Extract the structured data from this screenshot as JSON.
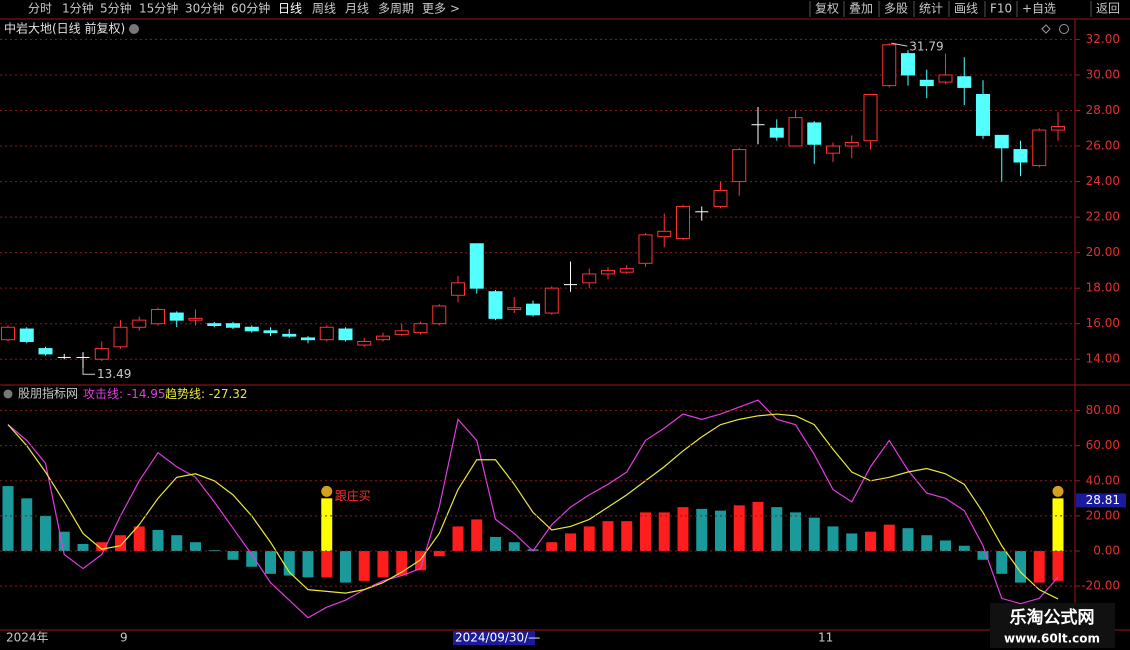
{
  "toolbar": {
    "left": [
      "分时",
      "1分钟",
      "5分钟",
      "15分钟",
      "30分钟",
      "60分钟",
      "日线",
      "周线",
      "月线",
      "多周期",
      "更多 >"
    ],
    "right": [
      "复权",
      "叠加",
      "多股",
      "统计",
      "画线",
      "F10",
      "+自选",
      "返回"
    ]
  },
  "main_chart": {
    "title": "中岩大地(日线 前复权)",
    "yticks": [
      {
        "value": 14,
        "label": "14.00"
      },
      {
        "value": 16,
        "label": "16.00"
      },
      {
        "value": 18,
        "label": "18.00"
      },
      {
        "value": 20,
        "label": "20.00"
      },
      {
        "value": 22,
        "label": "22.00"
      },
      {
        "value": 24,
        "label": "24.00"
      },
      {
        "value": 26,
        "label": "26.00"
      },
      {
        "value": 28,
        "label": "28.00"
      },
      {
        "value": 30,
        "label": "30.00"
      },
      {
        "value": 32,
        "label": "32.00"
      }
    ],
    "ylim": [
      12.55,
      33.15
    ],
    "up_color": "#ff3232",
    "down_color": "#54ffff",
    "flat_color": "#ffffff",
    "open": [
      15.1,
      15.7,
      14.6,
      14.1,
      14.1,
      14.0,
      14.7,
      15.8,
      16.0,
      16.6,
      16.2,
      16.0,
      16.0,
      15.8,
      15.6,
      15.4,
      15.2,
      15.1,
      15.7,
      14.8,
      15.1,
      15.4,
      15.5,
      16.0,
      17.6,
      20.5,
      17.8,
      16.8,
      17.1,
      16.6,
      18.2,
      18.3,
      18.8,
      18.9,
      19.4,
      20.9,
      20.8,
      22.3,
      22.6,
      24.0,
      27.2,
      27.0,
      26.0,
      27.3,
      25.6,
      26.0,
      26.3,
      29.4,
      31.2,
      29.7,
      29.6,
      29.9,
      28.9,
      26.6,
      25.8,
      24.9,
      26.9
    ],
    "high": [
      15.9,
      15.8,
      14.7,
      14.3,
      14.4,
      15.0,
      16.2,
      16.4,
      16.9,
      16.7,
      16.8,
      16.1,
      16.1,
      15.9,
      15.8,
      15.7,
      15.3,
      15.9,
      15.8,
      15.2,
      15.5,
      16.0,
      16.1,
      17.1,
      18.7,
      20.5,
      17.9,
      17.5,
      17.3,
      18.1,
      19.5,
      19.1,
      19.2,
      19.3,
      21.1,
      22.2,
      22.7,
      22.6,
      24.0,
      25.9,
      28.2,
      27.5,
      28.0,
      27.4,
      26.2,
      26.6,
      28.9,
      31.79,
      31.4,
      30.3,
      31.2,
      31.0,
      29.7,
      26.6,
      26.3,
      27.0,
      27.9
    ],
    "low": [
      15.0,
      14.9,
      14.2,
      14.0,
      13.49,
      13.9,
      14.6,
      15.6,
      15.9,
      15.8,
      15.9,
      15.8,
      15.7,
      15.5,
      15.3,
      15.2,
      14.9,
      15.0,
      15.0,
      14.7,
      15.0,
      15.3,
      15.4,
      15.9,
      17.2,
      17.7,
      16.2,
      16.6,
      16.4,
      16.5,
      17.8,
      18.0,
      18.5,
      18.8,
      19.2,
      20.3,
      20.7,
      21.8,
      22.5,
      23.2,
      26.1,
      26.3,
      26.0,
      25.0,
      25.1,
      25.3,
      25.8,
      29.3,
      29.4,
      28.7,
      29.5,
      28.3,
      26.4,
      24.0,
      24.3,
      24.8,
      26.3
    ],
    "close": [
      15.8,
      15.0,
      14.3,
      14.1,
      14.1,
      14.6,
      15.8,
      16.2,
      16.8,
      16.2,
      16.3,
      15.9,
      15.8,
      15.6,
      15.5,
      15.3,
      15.1,
      15.8,
      15.1,
      15.0,
      15.3,
      15.6,
      16.0,
      17.0,
      18.3,
      18.0,
      16.3,
      16.9,
      16.5,
      18.0,
      18.2,
      18.8,
      19.0,
      19.1,
      21.0,
      21.2,
      22.6,
      22.3,
      23.5,
      25.8,
      27.2,
      26.5,
      27.6,
      26.1,
      26.0,
      26.2,
      28.9,
      31.7,
      30.0,
      29.4,
      30.0,
      29.3,
      26.6,
      25.9,
      25.1,
      26.9,
      27.1
    ]
  },
  "indicator": {
    "name": "股朋指标网",
    "attack_label": "攻击线:",
    "trend_label": "趋势线:",
    "attack_color": "#e03ce0",
    "trend_color": "#e8e83c",
    "bar_up_color": "#ff1e1e",
    "bar_down_color": "#1a9a9a",
    "signal_color": "#ffff00",
    "signal_text": "跟庄买",
    "cursor_value": 28.81,
    "yticks": [
      {
        "value": -20,
        "label": "-20.00"
      },
      {
        "value": 0,
        "label": "0.00"
      },
      {
        "value": 20,
        "label": "20.00"
      },
      {
        "value": 40,
        "label": "40.00"
      },
      {
        "value": 60,
        "label": "60.00"
      },
      {
        "value": 80,
        "label": "80.00"
      }
    ],
    "ylim": [
      -45,
      94
    ],
    "bars": [
      37,
      30,
      20,
      11,
      4,
      5,
      9,
      14,
      12,
      9,
      5,
      0.5,
      -5,
      -9,
      -13,
      -14,
      -15,
      -15,
      -18,
      -17,
      -15,
      -14,
      -11,
      -3,
      14,
      18,
      8,
      5,
      1,
      5,
      10,
      14,
      17,
      17,
      22,
      22,
      25,
      24,
      23,
      26,
      28,
      25,
      22,
      19,
      14,
      10,
      11,
      15,
      13,
      9,
      6,
      3,
      -5,
      -13,
      -18,
      -18,
      -17
    ],
    "signals": [
      null,
      null,
      null,
      null,
      null,
      null,
      null,
      null,
      null,
      null,
      null,
      null,
      null,
      null,
      null,
      null,
      null,
      30,
      null,
      null,
      null,
      null,
      null,
      null,
      null,
      null,
      null,
      null,
      null,
      null,
      null,
      null,
      null,
      null,
      null,
      null,
      null,
      null,
      null,
      null,
      null,
      null,
      null,
      null,
      null,
      null,
      null,
      null,
      null,
      null,
      null,
      null,
      null,
      null,
      null,
      null,
      30
    ],
    "attack": [
      72,
      63,
      50,
      -2,
      -10,
      -2,
      20,
      40,
      56,
      48,
      42,
      28,
      13,
      -2,
      -18,
      -28,
      -38,
      -32,
      -28,
      -22,
      -17,
      -14,
      -10,
      25,
      75,
      63,
      18,
      10,
      0,
      15,
      25,
      32,
      38,
      45,
      63,
      70,
      78,
      75,
      78,
      82,
      86,
      75,
      72,
      55,
      35,
      28,
      48,
      63,
      46,
      33,
      30,
      23,
      3,
      -27,
      -30,
      -27,
      -14.95
    ],
    "trend": [
      72,
      60,
      45,
      28,
      10,
      1,
      3,
      15,
      30,
      42,
      44,
      40,
      32,
      20,
      5,
      -12,
      -22,
      -23,
      -24,
      -22,
      -18,
      -12,
      -5,
      10,
      35,
      52,
      52,
      38,
      22,
      12,
      14,
      18,
      25,
      32,
      40,
      48,
      57,
      65,
      72,
      75,
      77,
      78,
      77,
      72,
      58,
      45,
      40,
      42,
      45,
      47,
      44,
      38,
      22,
      3,
      -12,
      -22,
      -27.32
    ]
  },
  "date_bar": [
    "2024年",
    "9",
    "2024/09/30/—",
    "11"
  ],
  "watermark": {
    "title": "乐淘公式网",
    "url": "www.60lt.com"
  }
}
